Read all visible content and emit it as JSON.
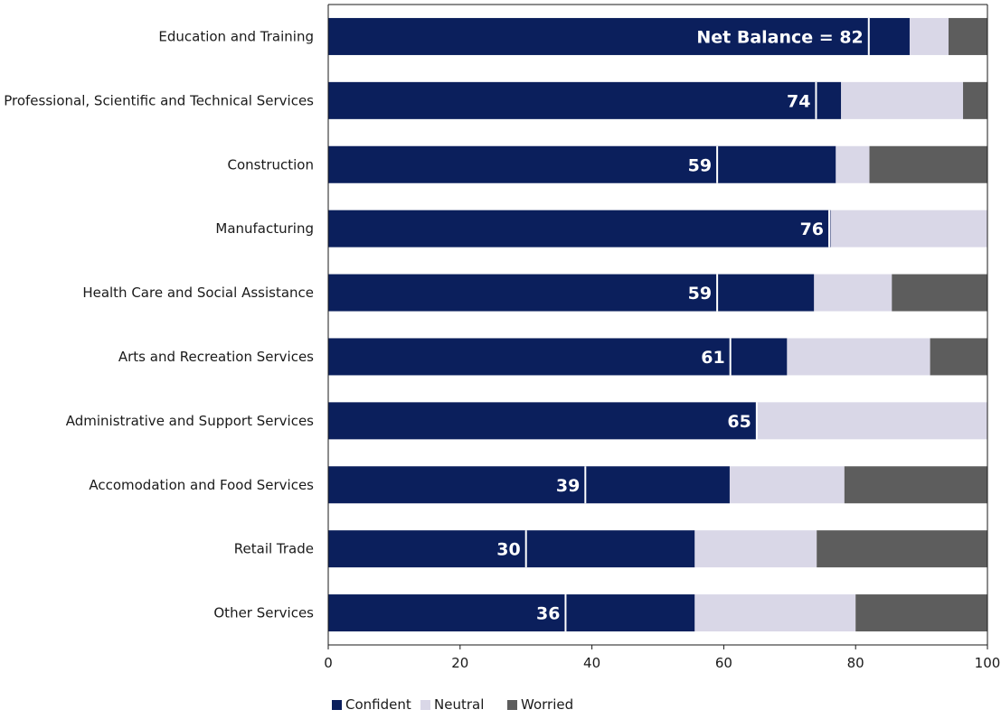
{
  "chart_data": {
    "type": "bar",
    "orientation": "horizontal",
    "stacked": true,
    "categories": [
      "Education and Training",
      "Professional, Scientific and Technical Services",
      "Construction",
      "Manufacturing",
      "Health Care and Social Assistance",
      "Arts and Recreation Services",
      "Administrative and Support Services",
      "Accomodation and Food Services",
      "Retail Trade",
      "Other Services"
    ],
    "series": [
      {
        "name": "Confident",
        "color": "#0b1f5c",
        "values": [
          88.2,
          77.8,
          77.0,
          76.2,
          73.7,
          69.6,
          64.9,
          60.9,
          55.6,
          55.6
        ]
      },
      {
        "name": "Neutral",
        "color": "#d9d7e7",
        "values": [
          5.9,
          18.5,
          5.1,
          23.8,
          11.8,
          21.7,
          35.1,
          17.4,
          18.5,
          24.4
        ]
      },
      {
        "name": "Worried",
        "color": "#5d5d5d",
        "values": [
          5.9,
          3.7,
          17.9,
          0.0,
          14.5,
          8.7,
          0.0,
          21.7,
          25.9,
          20.0
        ]
      }
    ],
    "net_balance": {
      "values": [
        82,
        74,
        59,
        76,
        59,
        61,
        65,
        39,
        30,
        36
      ],
      "labels": [
        "Net Balance = 82",
        "74",
        "59",
        "76",
        "59",
        "61",
        "65",
        "39",
        "30",
        "36"
      ],
      "marker_color": "#ffffff"
    },
    "xlim": [
      0,
      100
    ],
    "xticks": [
      "0",
      "20",
      "40",
      "60",
      "80",
      "100"
    ],
    "title": "",
    "xlabel": "",
    "ylabel": "",
    "grid": false,
    "legend": {
      "placement": "bottom-center",
      "entries": [
        "Confident",
        "Neutral",
        "Worried"
      ]
    }
  }
}
